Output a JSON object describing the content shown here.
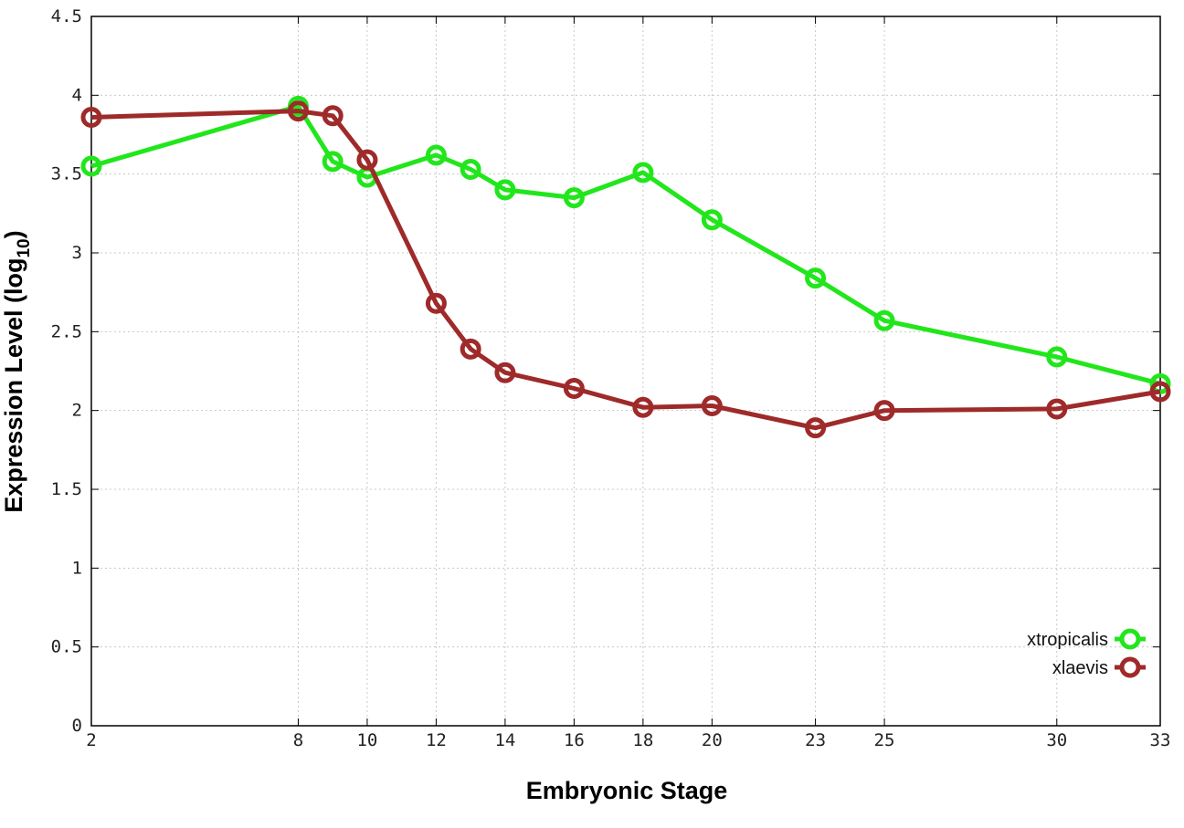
{
  "chart_data": {
    "type": "line",
    "xlabel": "Embryonic Stage",
    "ylabel": "Expression Level (log",
    "ylabel_subscript": "10",
    "ylabel_suffix": ")",
    "ylim": [
      0,
      4.5
    ],
    "y_ticks": [
      "0",
      "0.5",
      "1",
      "1.5",
      "2",
      "2.5",
      "3",
      "3.5",
      "4",
      "4.5"
    ],
    "categories": [
      "2",
      "8",
      "9",
      "10",
      "12",
      "13",
      "14",
      "16",
      "18",
      "20",
      "23",
      "25",
      "30",
      "33"
    ],
    "x_tick_labels": [
      "2",
      "8",
      "10",
      "12",
      "14",
      "16",
      "18",
      "20",
      "23",
      "25",
      "30",
      "33"
    ],
    "grid": true,
    "legend_position": "bottom-right",
    "series": [
      {
        "name": "xtropicalis",
        "color": "#22e61c",
        "values": [
          3.55,
          3.93,
          3.58,
          3.48,
          3.62,
          3.53,
          3.4,
          3.35,
          3.51,
          3.21,
          2.84,
          2.57,
          2.34,
          2.17
        ]
      },
      {
        "name": "xlaevis",
        "color": "#9e2a2a",
        "values": [
          3.86,
          3.9,
          3.87,
          3.59,
          2.68,
          2.39,
          2.24,
          2.14,
          2.02,
          2.03,
          1.89,
          2.0,
          2.01,
          2.12
        ]
      }
    ]
  }
}
